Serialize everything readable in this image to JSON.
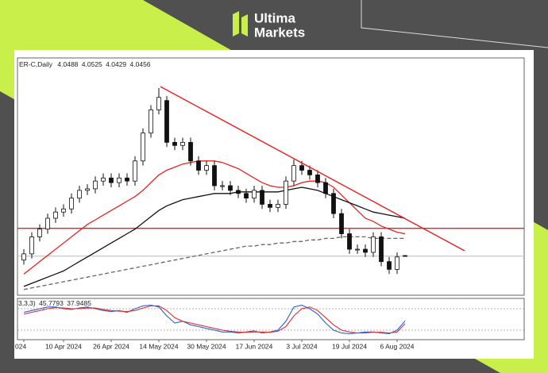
{
  "brand": {
    "line1": "Ultima",
    "line2": "Markets"
  },
  "chart_data": {
    "type": "candlestick",
    "symbol": "ER-C,Daily",
    "categories": [
      "024",
      null,
      null,
      null,
      null,
      "10 Apr 2024",
      null,
      null,
      null,
      null,
      null,
      "26 Apr 2024",
      null,
      null,
      null,
      null,
      null,
      "14 May 2024",
      null,
      null,
      null,
      null,
      null,
      "30 May 2024",
      null,
      null,
      null,
      null,
      null,
      "17 Jun 2024",
      null,
      null,
      null,
      null,
      null,
      "3 Jul 2024",
      null,
      null,
      null,
      null,
      null,
      "19 Jul 2024",
      null,
      null,
      null,
      null,
      null,
      "6 Aug 2024",
      null
    ],
    "open": [
      4.02,
      4.06,
      4.17,
      4.22,
      4.29,
      4.33,
      4.35,
      4.42,
      4.47,
      4.48,
      4.53,
      4.55,
      4.52,
      4.55,
      4.53,
      4.66,
      4.84,
      4.99,
      5.05,
      4.78,
      4.76,
      4.78,
      4.66,
      4.6,
      4.63,
      4.5,
      4.5,
      4.47,
      4.45,
      4.42,
      4.47,
      4.38,
      4.36,
      4.38,
      4.53,
      4.63,
      4.6,
      4.57,
      4.52,
      4.45,
      4.32,
      4.19,
      4.09,
      4.09,
      4.07,
      4.17,
      4.01,
      3.96,
      4.0488
    ],
    "high": [
      4.09,
      4.2,
      4.25,
      4.32,
      4.36,
      4.38,
      4.45,
      4.5,
      4.51,
      4.56,
      4.58,
      4.58,
      4.58,
      4.58,
      4.69,
      4.87,
      5.02,
      5.13,
      5.08,
      4.81,
      4.81,
      4.81,
      4.69,
      4.66,
      4.66,
      4.53,
      4.53,
      4.5,
      4.48,
      4.5,
      4.5,
      4.41,
      4.41,
      4.56,
      4.67,
      4.66,
      4.63,
      4.6,
      4.55,
      4.48,
      4.35,
      4.22,
      4.12,
      4.12,
      4.2,
      4.2,
      4.04,
      4.07,
      4.0525
    ],
    "low": [
      3.99,
      4.03,
      4.14,
      4.19,
      4.26,
      4.3,
      4.32,
      4.39,
      4.44,
      4.45,
      4.5,
      4.49,
      4.49,
      4.5,
      4.5,
      4.63,
      4.81,
      4.96,
      4.75,
      4.73,
      4.73,
      4.63,
      4.57,
      4.57,
      4.47,
      4.47,
      4.44,
      4.42,
      4.39,
      4.39,
      4.35,
      4.33,
      4.33,
      4.35,
      4.5,
      4.57,
      4.54,
      4.49,
      4.42,
      4.29,
      4.16,
      4.06,
      4.06,
      4.04,
      4.04,
      3.98,
      3.93,
      3.93,
      4.0429
    ],
    "close": [
      4.06,
      4.17,
      4.22,
      4.29,
      4.33,
      4.35,
      4.42,
      4.47,
      4.48,
      4.53,
      4.55,
      4.52,
      4.55,
      4.53,
      4.66,
      4.84,
      4.99,
      5.07,
      4.78,
      4.76,
      4.78,
      4.66,
      4.6,
      4.63,
      4.5,
      4.5,
      4.47,
      4.45,
      4.42,
      4.47,
      4.38,
      4.36,
      4.38,
      4.53,
      4.63,
      4.6,
      4.57,
      4.52,
      4.45,
      4.32,
      4.19,
      4.09,
      4.09,
      4.07,
      4.17,
      4.01,
      3.96,
      4.04,
      4.0456
    ],
    "xlim": [
      -0.8,
      63
    ],
    "ylim": [
      3.793,
      5.325
    ],
    "overlays": [
      {
        "color": "#e8231f",
        "dash": false,
        "values": [
          3.93,
          3.97,
          4.01,
          4.05,
          4.09,
          4.13,
          4.17,
          4.21,
          4.25,
          4.28,
          4.31,
          4.34,
          4.37,
          4.4,
          4.43,
          4.47,
          4.52,
          4.57,
          4.6,
          4.62,
          4.64,
          4.65,
          4.66,
          4.66,
          4.66,
          4.65,
          4.63,
          4.61,
          4.58,
          4.55,
          4.52,
          4.5,
          4.49,
          4.49,
          4.5,
          4.52,
          4.53,
          4.53,
          4.52,
          4.49,
          4.44,
          4.39,
          4.34,
          4.29,
          4.27,
          4.24,
          4.22,
          4.2,
          4.19
        ]
      },
      {
        "color": "#111111",
        "dash": false,
        "values": [
          3.85,
          3.87,
          3.89,
          3.91,
          3.93,
          3.95,
          3.98,
          4.01,
          4.04,
          4.07,
          4.1,
          4.13,
          4.16,
          4.19,
          4.22,
          4.26,
          4.3,
          4.34,
          4.37,
          4.39,
          4.41,
          4.42,
          4.43,
          4.44,
          4.45,
          4.45,
          4.45,
          4.46,
          4.46,
          4.46,
          4.46,
          4.46,
          4.46,
          4.47,
          4.48,
          4.49,
          4.48,
          4.47,
          4.45,
          4.43,
          4.41,
          4.39,
          4.37,
          4.35,
          4.33,
          4.32,
          4.31,
          4.3,
          4.29
        ]
      },
      {
        "color": "#666666",
        "dash": true,
        "values": [
          3.83,
          3.84,
          3.85,
          3.86,
          3.87,
          3.88,
          3.89,
          3.9,
          3.91,
          3.92,
          3.93,
          3.94,
          3.95,
          3.96,
          3.97,
          3.98,
          3.99,
          4.0,
          4.01,
          4.02,
          4.03,
          4.04,
          4.05,
          4.06,
          4.07,
          4.08,
          4.09,
          4.1,
          4.11,
          4.11,
          4.12,
          4.12,
          4.13,
          4.13,
          4.14,
          4.14,
          4.15,
          4.15,
          4.16,
          4.16,
          4.17,
          4.17,
          4.17,
          4.17,
          4.16,
          4.16,
          4.16,
          4.16,
          4.16
        ]
      }
    ],
    "trendlines": [
      {
        "x": [
          17.2,
          55.5
        ],
        "y": [
          5.14,
          4.08
        ],
        "color": "#e82020"
      }
    ],
    "hlines": [
      {
        "y": 4.225,
        "color": "#e82020"
      }
    ],
    "oscillator": {
      "label": "3,3,3)",
      "ylim": [
        0,
        100
      ],
      "levels": [
        80,
        20
      ],
      "series": [
        {
          "color": "#2a5fd8",
          "values": [
            70,
            75,
            80,
            85,
            85,
            80,
            78,
            82,
            85,
            80,
            75,
            72,
            75,
            70,
            80,
            88,
            90,
            85,
            60,
            40,
            45,
            35,
            30,
            25,
            20,
            15,
            15,
            12,
            15,
            18,
            12,
            15,
            20,
            45,
            85,
            90,
            80,
            65,
            40,
            20,
            12,
            10,
            12,
            15,
            15,
            12,
            10,
            20,
            45.7793
          ]
        },
        {
          "color": "#e03030",
          "values": [
            65,
            70,
            75,
            80,
            83,
            82,
            80,
            80,
            82,
            82,
            78,
            75,
            73,
            72,
            75,
            82,
            88,
            88,
            75,
            55,
            45,
            40,
            35,
            30,
            25,
            20,
            17,
            15,
            14,
            15,
            15,
            14,
            17,
            30,
            60,
            80,
            85,
            75,
            55,
            35,
            20,
            15,
            12,
            12,
            14,
            14,
            12,
            15,
            37.9485
          ]
        }
      ]
    }
  }
}
